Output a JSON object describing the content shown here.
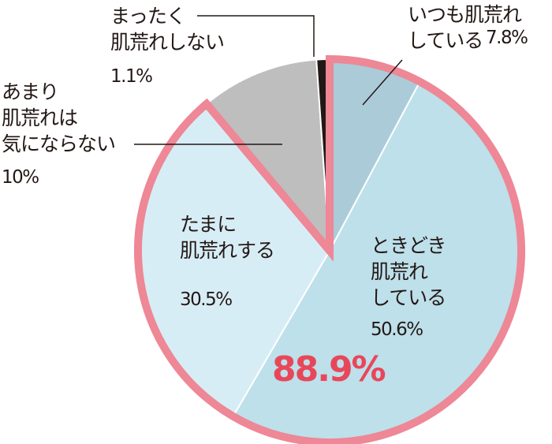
{
  "chart_data": {
    "type": "pie",
    "categories": [
      "いつも肌荒れ\nしている",
      "ときどき\n肌荒れ\nしている",
      "たまに\n肌荒れする",
      "あまり\n肌荒れは\n気にならない",
      "まったく\n肌荒れしない"
    ],
    "values": [
      7.8,
      50.6,
      30.5,
      10,
      1.1
    ],
    "value_labels": [
      "7.8%",
      "50.6%",
      "30.5%",
      "10%",
      "1.1%"
    ],
    "colors": [
      "#abcbd9",
      "#bde0ea",
      "#d7edf6",
      "#bebebe",
      "#231815"
    ],
    "annotation": "88.9%"
  }
}
